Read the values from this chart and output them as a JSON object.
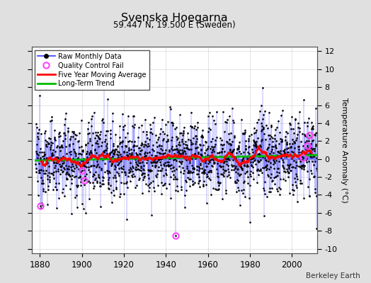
{
  "title": "Svenska Hoegarna",
  "subtitle": "59.447 N, 19.500 E (Sweden)",
  "ylabel": "Temperature Anomaly (°C)",
  "xlabel_years": [
    1880,
    1900,
    1920,
    1940,
    1960,
    1980,
    2000
  ],
  "yticks": [
    -10,
    -8,
    -6,
    -4,
    -2,
    0,
    2,
    4,
    6,
    8,
    10,
    12
  ],
  "ylim": [
    -10.5,
    12.5
  ],
  "xlim": [
    1876,
    2012
  ],
  "start_year": 1878,
  "end_year": 2011,
  "watermark": "Berkeley Earth",
  "bg_color": "#e0e0e0",
  "plot_bg_color": "#ffffff",
  "line_color": "#3333ff",
  "dot_color": "#000000",
  "moving_avg_color": "#ff0000",
  "trend_color": "#00bb00",
  "qc_fail_color": "#ff44ff",
  "seed": 12345,
  "qc_years_months": [
    [
      1880,
      3
    ],
    [
      1900,
      1
    ],
    [
      1901,
      2
    ],
    [
      1944,
      7
    ],
    [
      2005,
      4
    ],
    [
      2007,
      5
    ],
    [
      2008,
      3
    ]
  ]
}
